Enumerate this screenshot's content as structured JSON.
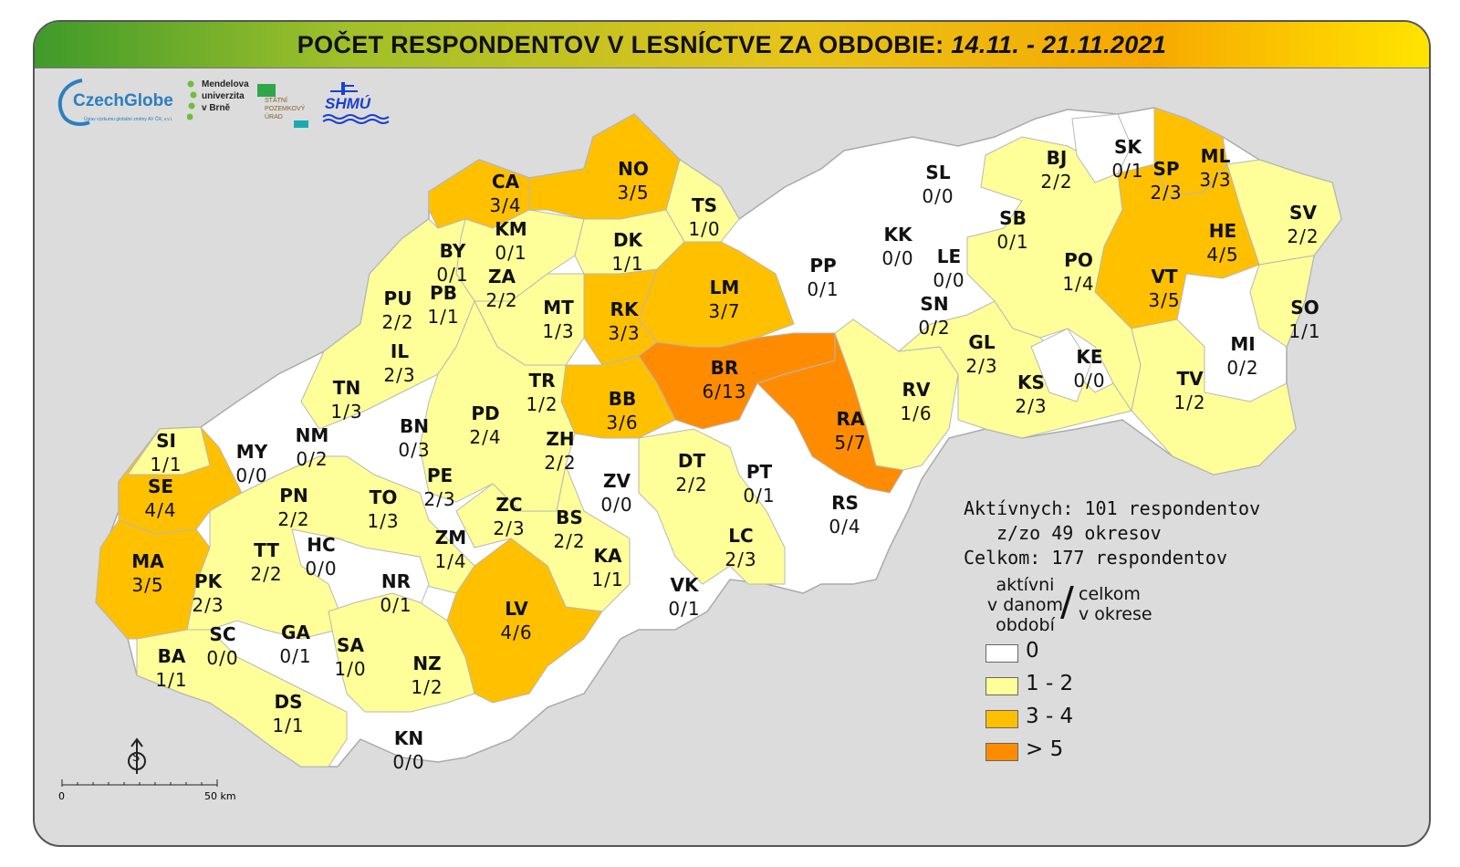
{
  "title": {
    "main": "POČET RESPONDENTOV V LESNÍCTVE ZA OBDOBIE:",
    "date": "14.11. - 21.11.2021"
  },
  "logos": {
    "czechglobe": {
      "name": "CzechGlobe",
      "subtitle": "Ústav výzkumu globální změny AV ČR, v.v.i."
    },
    "mendel": {
      "lines": [
        "Mendelova",
        "univerzita",
        "v Brně"
      ]
    },
    "spu": {
      "lines": [
        "STÁTNÍ",
        "POZEMKOVÝ",
        "ÚRAD"
      ]
    },
    "shmu": {
      "name": "SHMÚ"
    }
  },
  "colors": {
    "c0": "#ffffff",
    "c12": "#ffff99",
    "c34": "#ffc000",
    "c5": "#ff8c00",
    "border": "#b7b7b7"
  },
  "districts": [
    {
      "code": "CA",
      "value": "3/4",
      "cls": "c34"
    },
    {
      "code": "NO",
      "value": "3/5",
      "cls": "c34"
    },
    {
      "code": "TS",
      "value": "1/0",
      "cls": "c12"
    },
    {
      "code": "KM",
      "value": "0/1",
      "cls": "c0"
    },
    {
      "code": "BY",
      "value": "0/1",
      "cls": "c0"
    },
    {
      "code": "ZA",
      "value": "2/2",
      "cls": "c12"
    },
    {
      "code": "DK",
      "value": "1/1",
      "cls": "c12"
    },
    {
      "code": "LM",
      "value": "3/7",
      "cls": "c34"
    },
    {
      "code": "PP",
      "value": "0/1",
      "cls": "c0"
    },
    {
      "code": "SL",
      "value": "0/0",
      "cls": "c0"
    },
    {
      "code": "KK",
      "value": "0/0",
      "cls": "c0"
    },
    {
      "code": "LE",
      "value": "0/0",
      "cls": "c0"
    },
    {
      "code": "SB",
      "value": "0/1",
      "cls": "c0"
    },
    {
      "code": "BJ",
      "value": "2/2",
      "cls": "c12"
    },
    {
      "code": "SK",
      "value": "0/1",
      "cls": "c0"
    },
    {
      "code": "SP",
      "value": "2/3",
      "cls": "c12"
    },
    {
      "code": "ML",
      "value": "3/3",
      "cls": "c34"
    },
    {
      "code": "SV",
      "value": "2/2",
      "cls": "c12"
    },
    {
      "code": "HE",
      "value": "4/5",
      "cls": "c34"
    },
    {
      "code": "PO",
      "value": "1/4",
      "cls": "c12"
    },
    {
      "code": "VT",
      "value": "3/5",
      "cls": "c34"
    },
    {
      "code": "SO",
      "value": "1/1",
      "cls": "c12"
    },
    {
      "code": "MI",
      "value": "0/2",
      "cls": "c0"
    },
    {
      "code": "SN",
      "value": "0/2",
      "cls": "c0"
    },
    {
      "code": "PU",
      "value": "2/2",
      "cls": "c12"
    },
    {
      "code": "PB",
      "value": "1/1",
      "cls": "c12"
    },
    {
      "code": "MT",
      "value": "1/3",
      "cls": "c12"
    },
    {
      "code": "RK",
      "value": "3/3",
      "cls": "c34"
    },
    {
      "code": "IL",
      "value": "2/3",
      "cls": "c12"
    },
    {
      "code": "GL",
      "value": "2/3",
      "cls": "c12"
    },
    {
      "code": "KE",
      "value": "0/0",
      "cls": "c0"
    },
    {
      "code": "KS",
      "value": "2/3",
      "cls": "c12"
    },
    {
      "code": "TV",
      "value": "1/2",
      "cls": "c12"
    },
    {
      "code": "BR",
      "value": "6/13",
      "cls": "c5"
    },
    {
      "code": "TN",
      "value": "1/3",
      "cls": "c12"
    },
    {
      "code": "TR",
      "value": "1/2",
      "cls": "c12"
    },
    {
      "code": "RV",
      "value": "1/6",
      "cls": "c12"
    },
    {
      "code": "BB",
      "value": "3/6",
      "cls": "c34"
    },
    {
      "code": "BN",
      "value": "0/3",
      "cls": "c0"
    },
    {
      "code": "PD",
      "value": "2/4",
      "cls": "c12"
    },
    {
      "code": "NM",
      "value": "0/2",
      "cls": "c0"
    },
    {
      "code": "RA",
      "value": "5/7",
      "cls": "c5"
    },
    {
      "code": "SI",
      "value": "1/1",
      "cls": "c12"
    },
    {
      "code": "MY",
      "value": "0/0",
      "cls": "c0"
    },
    {
      "code": "ZH",
      "value": "2/2",
      "cls": "c12"
    },
    {
      "code": "SE",
      "value": "4/4",
      "cls": "c34"
    },
    {
      "code": "PE",
      "value": "2/3",
      "cls": "c12"
    },
    {
      "code": "DT",
      "value": "2/2",
      "cls": "c12"
    },
    {
      "code": "PT",
      "value": "0/1",
      "cls": "c0"
    },
    {
      "code": "ZV",
      "value": "0/0",
      "cls": "c0"
    },
    {
      "code": "PN",
      "value": "2/2",
      "cls": "c12"
    },
    {
      "code": "TO",
      "value": "1/3",
      "cls": "c12"
    },
    {
      "code": "ZC",
      "value": "2/3",
      "cls": "c12"
    },
    {
      "code": "RS",
      "value": "0/4",
      "cls": "c0"
    },
    {
      "code": "BS",
      "value": "2/2",
      "cls": "c12"
    },
    {
      "code": "HC",
      "value": "0/0",
      "cls": "c0"
    },
    {
      "code": "ZM",
      "value": "1/4",
      "cls": "c12"
    },
    {
      "code": "LC",
      "value": "2/3",
      "cls": "c12"
    },
    {
      "code": "MA",
      "value": "3/5",
      "cls": "c34"
    },
    {
      "code": "TT",
      "value": "2/2",
      "cls": "c12"
    },
    {
      "code": "NR",
      "value": "0/1",
      "cls": "c0"
    },
    {
      "code": "KA",
      "value": "1/1",
      "cls": "c12"
    },
    {
      "code": "PK",
      "value": "2/3",
      "cls": "c12"
    },
    {
      "code": "VK",
      "value": "0/1",
      "cls": "c0"
    },
    {
      "code": "LV",
      "value": "4/6",
      "cls": "c34"
    },
    {
      "code": "SC",
      "value": "0/0",
      "cls": "c0"
    },
    {
      "code": "GA",
      "value": "0/1",
      "cls": "c0"
    },
    {
      "code": "SA",
      "value": "1/0",
      "cls": "c12"
    },
    {
      "code": "NZ",
      "value": "1/2",
      "cls": "c12"
    },
    {
      "code": "BA",
      "value": "1/1",
      "cls": "c12"
    },
    {
      "code": "DS",
      "value": "1/1",
      "cls": "c12"
    },
    {
      "code": "KN",
      "value": "0/0",
      "cls": "c0"
    }
  ],
  "stats": {
    "active": "Aktívnych: 101 respondentov",
    "districts": "z/zo 49 okresov",
    "total": "Celkom: 177 respondentov"
  },
  "legend": {
    "left_lines": [
      "aktívni",
      "v danom",
      "období"
    ],
    "slash": "/",
    "right_lines": [
      "celkom",
      "v okrese"
    ],
    "items": [
      {
        "label": "0",
        "color": "#ffffff"
      },
      {
        "label": "1 - 2",
        "color": "#ffff99"
      },
      {
        "label": "3 - 4",
        "color": "#ffc000"
      },
      {
        "label": "> 5",
        "color": "#ff8c00"
      }
    ]
  },
  "scale": {
    "start": "0",
    "end": "50 km"
  },
  "north": {
    "symbol": "S"
  }
}
